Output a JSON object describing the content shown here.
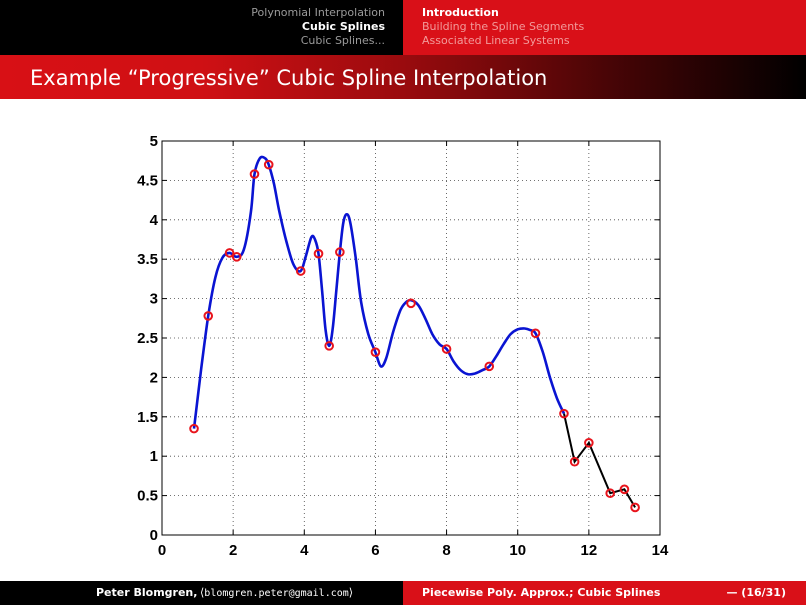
{
  "header": {
    "left_sections": [
      {
        "label": "Polynomial Interpolation",
        "active": false
      },
      {
        "label": "Cubic Splines",
        "active": true
      },
      {
        "label": "Cubic Splines...",
        "active": false
      }
    ],
    "right_subsections": [
      {
        "label": "Introduction",
        "active": true
      },
      {
        "label": "Building the Spline Segments",
        "active": false
      },
      {
        "label": "Associated Linear Systems",
        "active": false
      }
    ]
  },
  "slide_title": "Example “Progressive” Cubic Spline Interpolation",
  "chart_data": {
    "type": "line",
    "title": "",
    "xlabel": "",
    "ylabel": "",
    "xlim": [
      0,
      14
    ],
    "ylim": [
      0,
      5
    ],
    "x_ticks": [
      0,
      2,
      4,
      6,
      8,
      10,
      12,
      14
    ],
    "y_ticks": [
      0,
      0.5,
      1,
      1.5,
      2,
      2.5,
      3,
      3.5,
      4,
      4.5,
      5
    ],
    "x_tick_labels": [
      "0",
      "2",
      "4",
      "6",
      "8",
      "10",
      "12",
      "14"
    ],
    "y_tick_labels": [
      "0",
      "0.5",
      "1",
      "1.5",
      "2",
      "2.5",
      "3",
      "3.5",
      "4",
      "4.5",
      "5"
    ],
    "grid": true,
    "points": {
      "x": [
        0.9,
        1.3,
        1.9,
        2.1,
        2.6,
        3.0,
        3.9,
        4.4,
        4.7,
        5.0,
        6.0,
        7.0,
        8.0,
        9.2,
        10.5,
        11.3,
        11.6,
        12.0,
        12.6,
        13.0,
        13.3
      ],
      "y": [
        1.35,
        2.78,
        3.58,
        3.53,
        4.58,
        4.7,
        3.35,
        3.57,
        2.4,
        3.59,
        2.32,
        2.94,
        2.36,
        2.14,
        2.56,
        1.54,
        0.93,
        1.17,
        0.53,
        0.58,
        0.35
      ],
      "marker_color": "#e8141c"
    },
    "series": [
      {
        "x": [
          0.9,
          1.1,
          1.3,
          1.5,
          1.7,
          1.9,
          2.1,
          2.3,
          2.5,
          2.6,
          2.75,
          2.9,
          3.0,
          3.15,
          3.3,
          3.5,
          3.7,
          3.9,
          4.05,
          4.2,
          4.3,
          4.4,
          4.5,
          4.6,
          4.7,
          4.8,
          4.9,
          5.0,
          5.1,
          5.2,
          5.3,
          5.45,
          5.6,
          5.8,
          6.0,
          6.15,
          6.3,
          6.5,
          6.7,
          6.85,
          7.0,
          7.2,
          7.4,
          7.6,
          7.8,
          8.0,
          8.2,
          8.4,
          8.6,
          8.8,
          9.0,
          9.2,
          9.4,
          9.6,
          9.8,
          10.0,
          10.2,
          10.35,
          10.5,
          10.7,
          10.9,
          11.1,
          11.3
        ],
        "y": [
          1.35,
          2.1,
          2.78,
          3.27,
          3.52,
          3.58,
          3.53,
          3.62,
          4.1,
          4.58,
          4.78,
          4.78,
          4.7,
          4.45,
          4.1,
          3.72,
          3.43,
          3.35,
          3.55,
          3.78,
          3.75,
          3.57,
          3.1,
          2.6,
          2.4,
          2.62,
          3.1,
          3.59,
          3.97,
          4.07,
          3.95,
          3.5,
          2.95,
          2.55,
          2.32,
          2.14,
          2.24,
          2.58,
          2.85,
          2.95,
          2.98,
          2.92,
          2.75,
          2.55,
          2.42,
          2.36,
          2.2,
          2.09,
          2.04,
          2.05,
          2.09,
          2.14,
          2.27,
          2.42,
          2.55,
          2.61,
          2.62,
          2.6,
          2.56,
          2.33,
          2.01,
          1.74,
          1.54
        ],
        "color": "#0a14d2"
      },
      {
        "x": [
          11.3,
          11.6,
          12.0,
          12.6,
          13.0,
          13.3
        ],
        "y": [
          1.54,
          0.93,
          1.17,
          0.53,
          0.58,
          0.35
        ],
        "color": "#000000"
      }
    ]
  },
  "footer": {
    "author": "Peter Blomgren,",
    "email": "blomgren.peter@gmail.com",
    "talk_title": "Piecewise Poly. Approx.; Cubic Splines",
    "page": "— (16/31)"
  }
}
